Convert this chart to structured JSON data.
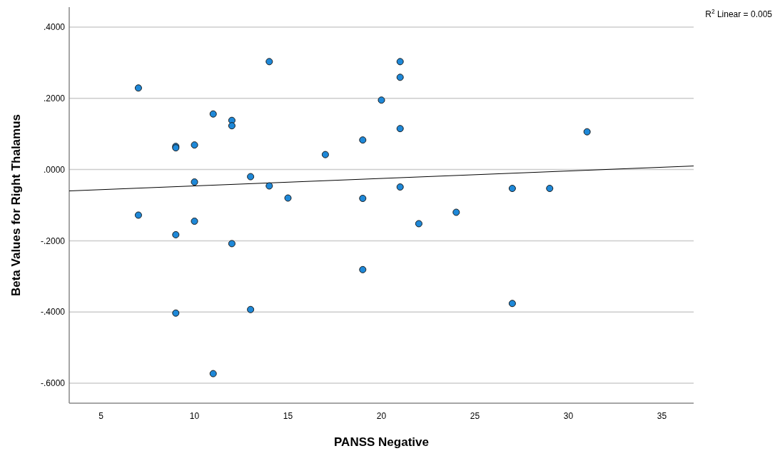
{
  "chart_data": {
    "type": "scatter",
    "xlabel": "PANSS Negative",
    "ylabel": "Beta Values for Right Thalamus",
    "xlim": [
      3.3,
      36.7
    ],
    "xticks": [
      5,
      10,
      15,
      20,
      25,
      30,
      35
    ],
    "ylim": [
      -0.656,
      0.456
    ],
    "yticks": [
      {
        "value": -0.6,
        "label": "-.6000"
      },
      {
        "value": -0.4,
        "label": "-.4000"
      },
      {
        "value": -0.2,
        "label": "-.2000"
      },
      {
        "value": 0,
        "label": ".0000"
      },
      {
        "value": 0.2,
        "label": ".2000"
      },
      {
        "value": 0.4,
        "label": ".4000"
      }
    ],
    "grid": "y",
    "annotations": [
      "R$^{2}$ Linear = 0.005"
    ],
    "series": [
      {
        "marker": "circle",
        "color": "#1e88d8",
        "x": [
          7,
          14,
          11,
          12,
          12,
          9,
          9,
          10,
          17,
          13,
          10,
          14,
          15,
          7,
          10,
          9,
          12,
          21,
          21,
          20,
          21,
          19,
          21,
          19,
          24,
          22,
          27,
          29,
          31,
          9,
          13,
          11,
          19,
          27
        ],
        "values": [
          0.229,
          0.303,
          0.156,
          0.138,
          0.123,
          0.065,
          0.061,
          0.069,
          0.042,
          -0.02,
          -0.035,
          -0.046,
          -0.08,
          -0.128,
          -0.145,
          -0.183,
          -0.208,
          0.303,
          0.259,
          0.195,
          0.115,
          0.083,
          -0.049,
          -0.081,
          -0.12,
          -0.152,
          -0.053,
          -0.053,
          0.106,
          -0.403,
          -0.393,
          -0.573,
          -0.281,
          -0.376
        ]
      },
      {
        "type": "line",
        "color": "#000000",
        "x": [
          3.3,
          36.7
        ],
        "values": [
          -0.06,
          0.01
        ]
      }
    ]
  }
}
